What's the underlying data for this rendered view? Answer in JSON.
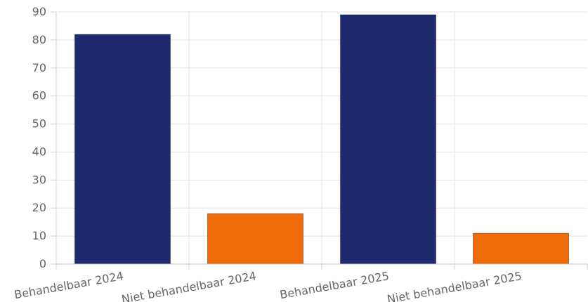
{
  "chart_data": {
    "type": "bar",
    "categories": [
      "Behandelbaar 2024",
      "Niet behandelbaar 2024",
      "Behandelbaar 2025",
      "Niet behandelbaar 2025"
    ],
    "values": [
      82,
      18,
      89,
      11
    ],
    "colors": [
      "#1f2a6e",
      "#ef6a08",
      "#1f2a6e",
      "#ef6a08"
    ],
    "ylim": [
      0,
      90
    ],
    "yticks": [
      "0",
      "10",
      "20",
      "30",
      "40",
      "50",
      "60",
      "70",
      "80",
      "90"
    ],
    "grid": true,
    "title": "",
    "xlabel": "",
    "ylabel": ""
  }
}
